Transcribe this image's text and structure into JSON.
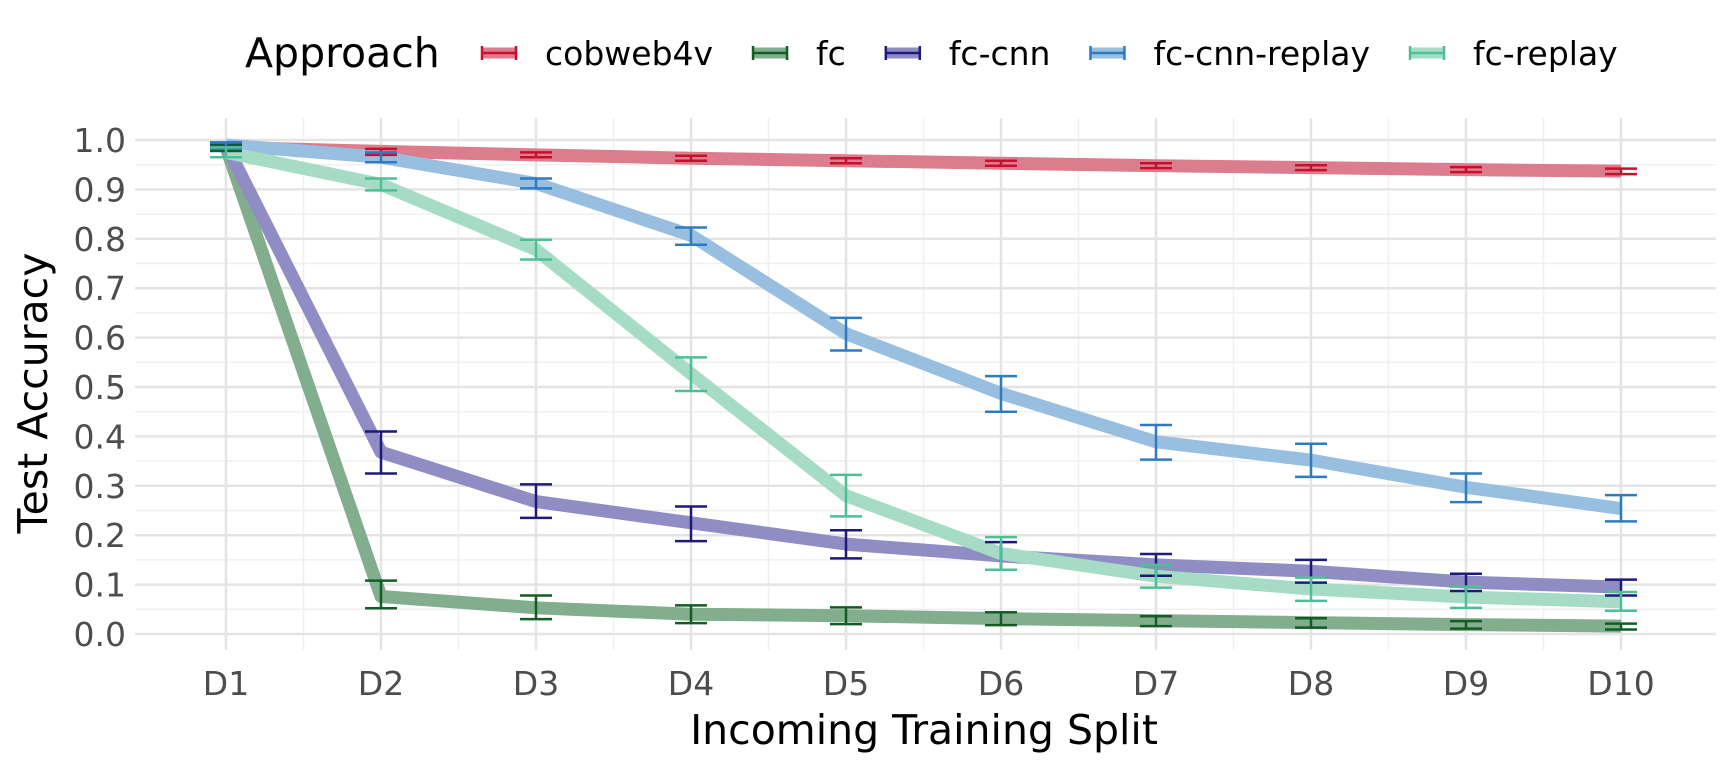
{
  "chart_data": {
    "type": "line",
    "xlabel": "Incoming Training Split",
    "ylabel": "Test Accuracy",
    "categories": [
      "D1",
      "D2",
      "D3",
      "D4",
      "D5",
      "D6",
      "D7",
      "D8",
      "D9",
      "D10"
    ],
    "ylim": [
      0.0,
      1.0
    ],
    "yticks": [
      "0.0",
      "0.1",
      "0.2",
      "0.3",
      "0.4",
      "0.5",
      "0.6",
      "0.7",
      "0.8",
      "0.9",
      "1.0"
    ],
    "grid": true,
    "legend": {
      "title": "Approach",
      "placement": "top"
    },
    "series": [
      {
        "name": "cobweb4v",
        "line_color": "#dc7d8d",
        "error_color": "#c8102e",
        "values": [
          0.985,
          0.977,
          0.97,
          0.963,
          0.958,
          0.953,
          0.948,
          0.944,
          0.94,
          0.937
        ],
        "err_low": [
          0.978,
          0.97,
          0.965,
          0.958,
          0.953,
          0.948,
          0.943,
          0.939,
          0.935,
          0.931
        ],
        "err_high": [
          0.99,
          0.982,
          0.975,
          0.968,
          0.963,
          0.958,
          0.953,
          0.949,
          0.945,
          0.942
        ]
      },
      {
        "name": "fc",
        "line_color": "#82ae8e",
        "error_color": "#135c25",
        "values": [
          0.985,
          0.076,
          0.053,
          0.04,
          0.037,
          0.031,
          0.027,
          0.023,
          0.019,
          0.016
        ],
        "err_low": [
          0.978,
          0.052,
          0.03,
          0.022,
          0.02,
          0.018,
          0.016,
          0.013,
          0.011,
          0.009
        ],
        "err_high": [
          0.99,
          0.108,
          0.078,
          0.058,
          0.054,
          0.044,
          0.036,
          0.032,
          0.026,
          0.021
        ]
      },
      {
        "name": "fc-cnn",
        "line_color": "#8f8dc3",
        "error_color": "#1d1a7a",
        "values": [
          0.99,
          0.368,
          0.268,
          0.225,
          0.182,
          0.158,
          0.14,
          0.127,
          0.105,
          0.095
        ],
        "err_low": [
          0.982,
          0.325,
          0.235,
          0.188,
          0.153,
          0.13,
          0.118,
          0.104,
          0.087,
          0.078
        ],
        "err_high": [
          0.995,
          0.41,
          0.303,
          0.258,
          0.21,
          0.186,
          0.162,
          0.15,
          0.122,
          0.11
        ]
      },
      {
        "name": "fc-cnn-replay",
        "line_color": "#99bfe0",
        "error_color": "#2f7bbf",
        "values": [
          0.99,
          0.965,
          0.912,
          0.807,
          0.608,
          0.487,
          0.389,
          0.352,
          0.297,
          0.254
        ],
        "err_low": [
          0.982,
          0.955,
          0.902,
          0.788,
          0.574,
          0.45,
          0.353,
          0.318,
          0.267,
          0.228
        ],
        "err_high": [
          0.995,
          0.975,
          0.922,
          0.823,
          0.64,
          0.522,
          0.423,
          0.385,
          0.325,
          0.281
        ]
      },
      {
        "name": "fc-replay",
        "line_color": "#a6dcc6",
        "error_color": "#4dbf98",
        "values": [
          0.975,
          0.91,
          0.778,
          0.527,
          0.28,
          0.163,
          0.117,
          0.091,
          0.075,
          0.065
        ],
        "err_low": [
          0.965,
          0.898,
          0.758,
          0.492,
          0.238,
          0.13,
          0.094,
          0.067,
          0.053,
          0.047
        ],
        "err_high": [
          0.985,
          0.922,
          0.798,
          0.56,
          0.322,
          0.196,
          0.14,
          0.114,
          0.096,
          0.085
        ]
      }
    ]
  }
}
